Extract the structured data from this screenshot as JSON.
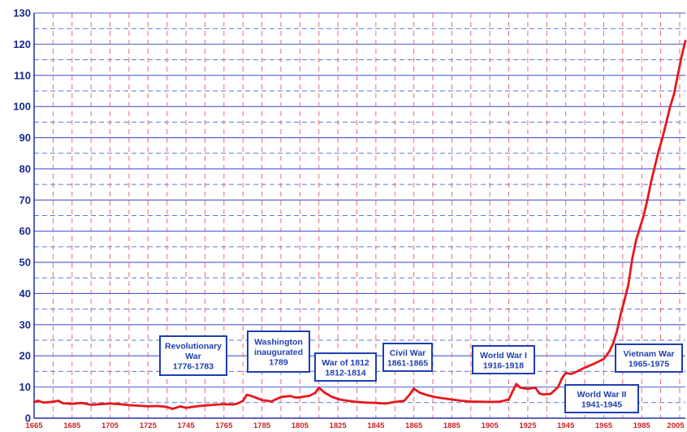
{
  "chart_data": {
    "type": "line",
    "title": "",
    "xlabel": "",
    "ylabel": "",
    "xlim": [
      1665,
      2008
    ],
    "ylim": [
      0,
      130
    ],
    "grid": true,
    "x_ticks": [
      1665,
      1685,
      1705,
      1725,
      1745,
      1765,
      1785,
      1805,
      1825,
      1845,
      1865,
      1885,
      1905,
      1925,
      1945,
      1965,
      1985,
      2005
    ],
    "x_tick_labels": [
      "1665",
      "1685",
      "1705",
      "1725",
      "1745",
      "1765",
      "1785",
      "1805",
      "1825",
      "1845",
      "1865",
      "1885",
      "1905",
      "1925",
      "1945",
      "1965",
      "1985",
      "2005"
    ],
    "y_ticks": [
      0,
      10,
      20,
      30,
      40,
      50,
      60,
      70,
      80,
      90,
      100,
      110,
      120,
      130
    ],
    "y_tick_labels": [
      "0",
      "10",
      "20",
      "30",
      "40",
      "50",
      "60",
      "70",
      "80",
      "90",
      "100",
      "110",
      "120",
      "130"
    ],
    "series": [
      {
        "color": "#e8161b",
        "points": [
          [
            1665,
            5.2
          ],
          [
            1667,
            5.6
          ],
          [
            1670,
            5.0
          ],
          [
            1675,
            5.3
          ],
          [
            1678,
            5.6
          ],
          [
            1680,
            4.8
          ],
          [
            1685,
            4.6
          ],
          [
            1690,
            4.9
          ],
          [
            1695,
            4.3
          ],
          [
            1700,
            4.5
          ],
          [
            1705,
            4.7
          ],
          [
            1710,
            4.5
          ],
          [
            1715,
            4.2
          ],
          [
            1720,
            4.0
          ],
          [
            1725,
            3.8
          ],
          [
            1730,
            3.9
          ],
          [
            1735,
            3.6
          ],
          [
            1738,
            3.0
          ],
          [
            1740,
            3.4
          ],
          [
            1742,
            3.8
          ],
          [
            1745,
            3.3
          ],
          [
            1748,
            3.6
          ],
          [
            1752,
            3.9
          ],
          [
            1755,
            4.1
          ],
          [
            1760,
            4.3
          ],
          [
            1765,
            4.5
          ],
          [
            1770,
            4.4
          ],
          [
            1772,
            4.7
          ],
          [
            1775,
            5.5
          ],
          [
            1777,
            7.5
          ],
          [
            1779,
            7.2
          ],
          [
            1781,
            6.8
          ],
          [
            1785,
            5.8
          ],
          [
            1790,
            5.4
          ],
          [
            1795,
            6.8
          ],
          [
            1800,
            7.1
          ],
          [
            1803,
            6.6
          ],
          [
            1806,
            6.8
          ],
          [
            1810,
            7.2
          ],
          [
            1813,
            8.1
          ],
          [
            1815,
            9.8
          ],
          [
            1818,
            8.2
          ],
          [
            1822,
            6.8
          ],
          [
            1826,
            6.0
          ],
          [
            1830,
            5.6
          ],
          [
            1835,
            5.2
          ],
          [
            1840,
            5.0
          ],
          [
            1845,
            4.9
          ],
          [
            1850,
            4.7
          ],
          [
            1855,
            5.2
          ],
          [
            1860,
            5.6
          ],
          [
            1863,
            7.8
          ],
          [
            1865,
            9.5
          ],
          [
            1868,
            8.2
          ],
          [
            1872,
            7.4
          ],
          [
            1876,
            6.8
          ],
          [
            1880,
            6.4
          ],
          [
            1885,
            6.0
          ],
          [
            1890,
            5.6
          ],
          [
            1895,
            5.3
          ],
          [
            1900,
            5.3
          ],
          [
            1905,
            5.2
          ],
          [
            1910,
            5.3
          ],
          [
            1915,
            6.0
          ],
          [
            1917,
            8.6
          ],
          [
            1919,
            11.0
          ],
          [
            1921,
            9.8
          ],
          [
            1925,
            9.4
          ],
          [
            1929,
            9.8
          ],
          [
            1931,
            8.0
          ],
          [
            1933,
            7.6
          ],
          [
            1937,
            7.8
          ],
          [
            1941,
            10.0
          ],
          [
            1943,
            12.8
          ],
          [
            1945,
            14.5
          ],
          [
            1948,
            14.2
          ],
          [
            1951,
            15.0
          ],
          [
            1955,
            16.2
          ],
          [
            1960,
            17.5
          ],
          [
            1965,
            19.0
          ],
          [
            1968,
            21.5
          ],
          [
            1970,
            24.0
          ],
          [
            1972,
            28.0
          ],
          [
            1974,
            33.5
          ],
          [
            1976,
            38.0
          ],
          [
            1978,
            43.0
          ],
          [
            1980,
            51.0
          ],
          [
            1982,
            57.0
          ],
          [
            1984,
            61.0
          ],
          [
            1986,
            65.0
          ],
          [
            1988,
            70.0
          ],
          [
            1990,
            76.0
          ],
          [
            1992,
            81.0
          ],
          [
            1994,
            86.0
          ],
          [
            1996,
            90.0
          ],
          [
            1998,
            95.0
          ],
          [
            2000,
            100.0
          ],
          [
            2002,
            104.0
          ],
          [
            2004,
            110.0
          ],
          [
            2006,
            116.0
          ],
          [
            2008,
            121.0
          ]
        ]
      }
    ],
    "annotations": [
      {
        "lines": [
          "Revolutionary",
          "War",
          "1776-1783"
        ]
      },
      {
        "lines": [
          "Washington",
          "inaugurated",
          "1789"
        ]
      },
      {
        "lines": [
          "War of 1812",
          "1812-1814"
        ]
      },
      {
        "lines": [
          "Civil War",
          "1861-1865"
        ]
      },
      {
        "lines": [
          "World War I",
          "1916-1918"
        ]
      },
      {
        "lines": [
          "World War II",
          "1941-1945"
        ]
      },
      {
        "lines": [
          "Vietnam War",
          "1965-1975"
        ]
      }
    ],
    "colors": {
      "line": "#e8161b",
      "grid_major": "#4a5ad0",
      "grid_minor": "#5f73e0",
      "grid_vertical": "#e86a6a",
      "annotation_box_border": "#1e3fb0",
      "annotation_text": "#1e3fb0",
      "y_tick_text": "#1a2a8a",
      "x_tick_text": "#cc2222"
    }
  }
}
